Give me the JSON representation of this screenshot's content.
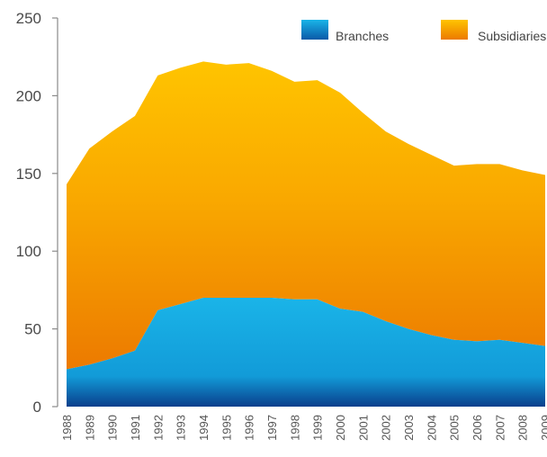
{
  "chart_data": {
    "type": "area",
    "stacked": true,
    "title": "",
    "xlabel": "",
    "ylabel": "",
    "ylim": [
      0,
      250
    ],
    "yticks": [
      0,
      50,
      100,
      150,
      200,
      250
    ],
    "grid": false,
    "legend_position": "top-right",
    "categories": [
      "1988",
      "1989",
      "1990",
      "1991",
      "1992",
      "1993",
      "1994",
      "1995",
      "1996",
      "1997",
      "1998",
      "1999",
      "2000",
      "2001",
      "2002",
      "2003",
      "2004",
      "2005",
      "2006",
      "2007",
      "2008",
      "2009"
    ],
    "series": [
      {
        "name": "Branches",
        "color_top": "#1ab4e8",
        "color_bottom": "#0a3f8c",
        "values": [
          24,
          27,
          31,
          36,
          62,
          66,
          70,
          70,
          70,
          70,
          69,
          69,
          63,
          61,
          55,
          50,
          46,
          43,
          42,
          43,
          41,
          39
        ]
      },
      {
        "name": "Subsidiaries",
        "color_top": "#ffc400",
        "color_bottom": "#ec7a00",
        "values": [
          119,
          139,
          146,
          151,
          151,
          152,
          152,
          150,
          151,
          146,
          140,
          141,
          139,
          128,
          122,
          119,
          116,
          112,
          114,
          113,
          111,
          110
        ]
      }
    ]
  }
}
